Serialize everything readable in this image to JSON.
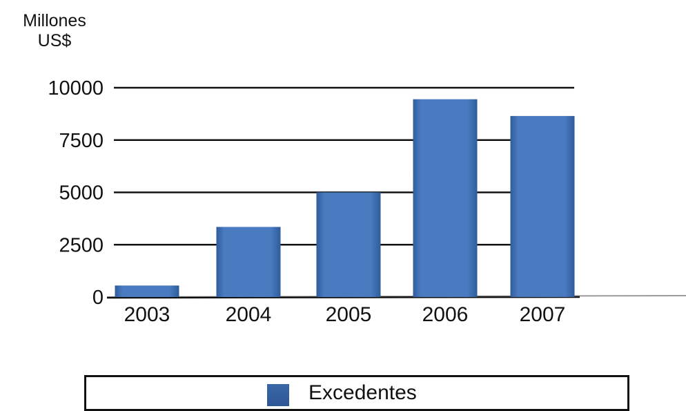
{
  "chart_data": {
    "type": "bar",
    "ylabel": [
      "Millones",
      "US$"
    ],
    "categories": [
      "2003",
      "2004",
      "2005",
      "2006",
      "2007"
    ],
    "series": [
      {
        "name": "Excedentes",
        "values": [
          550,
          3350,
          5000,
          9450,
          8650
        ]
      }
    ],
    "yticks": [
      0,
      2500,
      5000,
      7500,
      10000
    ],
    "ylim": [
      0,
      10000
    ],
    "grid": true,
    "legend_position": "bottom",
    "colors": {
      "bar": "#4a7ac0",
      "bar_dark": "#2f5c9a",
      "grid": "#111111"
    }
  }
}
